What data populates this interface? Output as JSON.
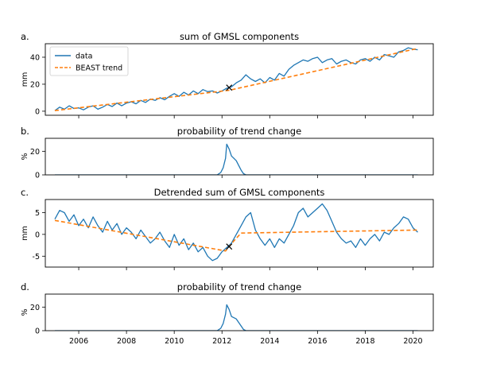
{
  "colors": {
    "data": "#1f77b4",
    "trend": "#ff7f0e",
    "axis": "#000000",
    "changepoint": "#000000"
  },
  "x_ticks": [
    2006,
    2008,
    2010,
    2012,
    2014,
    2016,
    2018,
    2020
  ],
  "chart_data": [
    {
      "panel": "a.",
      "title": "sum of GMSL components",
      "type": "line",
      "ylabel": "mm",
      "xlim": [
        2004.6,
        2020.85
      ],
      "ylim": [
        -3,
        50
      ],
      "y_ticks": [
        0,
        20,
        40
      ],
      "legend": {
        "placement": "top-left",
        "entries": [
          "data",
          "BEAST trend"
        ]
      },
      "changepoint": {
        "x": 2012.3,
        "y": 17.5
      },
      "series": [
        {
          "name": "data",
          "style": "solid",
          "x": [
            2005.0,
            2005.2,
            2005.4,
            2005.6,
            2005.8,
            2006.0,
            2006.2,
            2006.4,
            2006.6,
            2006.8,
            2007.0,
            2007.2,
            2007.4,
            2007.6,
            2007.8,
            2008.0,
            2008.2,
            2008.4,
            2008.6,
            2008.8,
            2009.0,
            2009.2,
            2009.4,
            2009.6,
            2009.8,
            2010.0,
            2010.2,
            2010.4,
            2010.6,
            2010.8,
            2011.0,
            2011.2,
            2011.4,
            2011.6,
            2011.8,
            2012.0,
            2012.2,
            2012.4,
            2012.6,
            2012.8,
            2013.0,
            2013.2,
            2013.4,
            2013.6,
            2013.8,
            2014.0,
            2014.2,
            2014.4,
            2014.6,
            2014.8,
            2015.0,
            2015.2,
            2015.4,
            2015.6,
            2015.8,
            2016.0,
            2016.2,
            2016.4,
            2016.6,
            2016.8,
            2017.0,
            2017.2,
            2017.4,
            2017.6,
            2017.8,
            2018.0,
            2018.2,
            2018.4,
            2018.6,
            2018.8,
            2019.0,
            2019.2,
            2019.4,
            2019.6,
            2019.8,
            2020.0,
            2020.2
          ],
          "y": [
            0.5,
            3,
            1.5,
            4,
            2,
            2.5,
            1,
            3,
            4,
            1.5,
            3,
            5,
            3.5,
            6,
            4,
            6,
            7,
            5.5,
            8,
            6.5,
            9,
            8,
            10,
            8.5,
            11,
            13,
            11,
            14,
            12,
            15,
            13,
            16,
            14.5,
            15,
            13.5,
            15,
            17,
            18,
            21,
            23,
            27,
            24,
            22,
            24,
            21,
            25,
            23,
            28,
            26,
            31,
            34,
            36,
            38,
            37,
            39,
            40,
            36,
            38,
            39,
            35,
            37,
            38,
            36,
            35,
            38,
            39,
            37,
            40,
            38,
            42,
            41,
            40,
            44,
            45,
            47,
            46,
            45.5
          ]
        },
        {
          "name": "BEAST trend",
          "style": "dashed",
          "x": [
            2005.0,
            2012.3,
            2020.2
          ],
          "y": [
            0.5,
            15.5,
            46.5
          ]
        }
      ]
    },
    {
      "panel": "b.",
      "title": "probability of trend change",
      "type": "line",
      "ylabel": "%",
      "xlim": [
        2004.6,
        2020.85
      ],
      "ylim": [
        0,
        31
      ],
      "y_ticks": [
        0,
        20
      ],
      "series": [
        {
          "name": "",
          "style": "solid",
          "x": [
            2005.0,
            2011.8,
            2011.95,
            2012.05,
            2012.15,
            2012.2,
            2012.3,
            2012.4,
            2012.5,
            2012.6,
            2012.7,
            2012.8,
            2012.9,
            2013.0,
            2020.2
          ],
          "y": [
            0,
            0,
            2,
            6,
            14,
            26,
            22,
            16,
            14,
            12,
            8,
            4,
            1,
            0,
            0
          ]
        }
      ]
    },
    {
      "panel": "c.",
      "title": "Detrended sum of GMSL components",
      "type": "line",
      "ylabel": "mm",
      "xlim": [
        2004.6,
        2020.85
      ],
      "ylim": [
        -7.5,
        8
      ],
      "y_ticks": [
        -5,
        0,
        5
      ],
      "changepoint": {
        "x": 2012.3,
        "y": -2.8
      },
      "series": [
        {
          "name": "data",
          "style": "solid",
          "x": [
            2005.0,
            2005.2,
            2005.4,
            2005.6,
            2005.8,
            2006.0,
            2006.2,
            2006.4,
            2006.6,
            2006.8,
            2007.0,
            2007.2,
            2007.4,
            2007.6,
            2007.8,
            2008.0,
            2008.2,
            2008.4,
            2008.6,
            2008.8,
            2009.0,
            2009.2,
            2009.4,
            2009.6,
            2009.8,
            2010.0,
            2010.2,
            2010.4,
            2010.6,
            2010.8,
            2011.0,
            2011.2,
            2011.4,
            2011.6,
            2011.8,
            2012.0,
            2012.2,
            2012.4,
            2012.6,
            2012.8,
            2013.0,
            2013.2,
            2013.4,
            2013.6,
            2013.8,
            2014.0,
            2014.2,
            2014.4,
            2014.6,
            2014.8,
            2015.0,
            2015.2,
            2015.4,
            2015.6,
            2015.8,
            2016.0,
            2016.2,
            2016.4,
            2016.6,
            2016.8,
            2017.0,
            2017.2,
            2017.4,
            2017.6,
            2017.8,
            2018.0,
            2018.2,
            2018.4,
            2018.6,
            2018.8,
            2019.0,
            2019.2,
            2019.4,
            2019.6,
            2019.8,
            2020.0,
            2020.2
          ],
          "y": [
            3.5,
            5.5,
            5,
            3,
            4.5,
            2,
            3.5,
            1.5,
            4,
            2,
            0.5,
            3,
            1,
            2.5,
            0,
            1.5,
            0.5,
            -1,
            1,
            -0.5,
            -2,
            -1,
            0.5,
            -1.5,
            -3,
            0,
            -2.5,
            -1,
            -3.5,
            -2,
            -4,
            -3,
            -5,
            -6,
            -5.5,
            -4,
            -3,
            -2,
            0,
            2,
            4,
            5,
            1,
            -1,
            -2.5,
            -1,
            -3,
            -1,
            -2,
            0,
            2,
            5,
            6,
            4,
            5,
            6,
            7,
            5.5,
            3,
            0.5,
            -1,
            -2,
            -1.5,
            -3,
            -1,
            -2.5,
            -1,
            0,
            -1.5,
            0.5,
            0,
            1.5,
            2.5,
            4,
            3.5,
            1.5,
            0.5
          ]
        },
        {
          "name": "BEAST trend",
          "style": "dashed",
          "x": [
            2005.0,
            2012.15,
            2012.5,
            2012.8,
            2020.2
          ],
          "y": [
            3.2,
            -3.8,
            -1.5,
            0.3,
            1.0
          ]
        }
      ]
    },
    {
      "panel": "d.",
      "title": "probability of trend change",
      "type": "line",
      "ylabel": "%",
      "xlim": [
        2004.6,
        2020.85
      ],
      "ylim": [
        0,
        31
      ],
      "y_ticks": [
        0,
        20
      ],
      "series": [
        {
          "name": "",
          "style": "solid",
          "x": [
            2005.0,
            2011.8,
            2011.95,
            2012.05,
            2012.15,
            2012.2,
            2012.3,
            2012.4,
            2012.5,
            2012.6,
            2012.7,
            2012.8,
            2012.9,
            2013.0,
            2020.2
          ],
          "y": [
            0,
            0,
            2,
            6,
            14,
            22,
            18,
            12,
            11,
            10,
            7,
            4,
            1,
            0,
            0
          ]
        }
      ]
    }
  ]
}
